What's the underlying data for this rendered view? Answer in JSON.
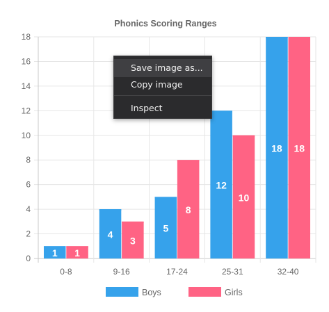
{
  "chart_data": {
    "type": "bar",
    "title": "Phonics Scoring Ranges",
    "xlabel": "",
    "ylabel": "",
    "categories": [
      "0-8",
      "9-16",
      "17-24",
      "25-31",
      "32-40"
    ],
    "series": [
      {
        "name": "Boys",
        "values": [
          1,
          4,
          5,
          12,
          18
        ],
        "color": "#36a2eb"
      },
      {
        "name": "Girls",
        "values": [
          1,
          3,
          8,
          10,
          18
        ],
        "color": "#ff6384"
      }
    ],
    "ylim": [
      0,
      18
    ],
    "yticks": [
      0,
      2,
      4,
      6,
      8,
      10,
      12,
      14,
      16,
      18
    ],
    "grid": true,
    "legend": "bottom",
    "data_labels": true
  },
  "context_menu": {
    "items": [
      {
        "label": "Save image as..."
      },
      {
        "label": "Copy image"
      },
      {
        "label": "Inspect"
      }
    ]
  }
}
